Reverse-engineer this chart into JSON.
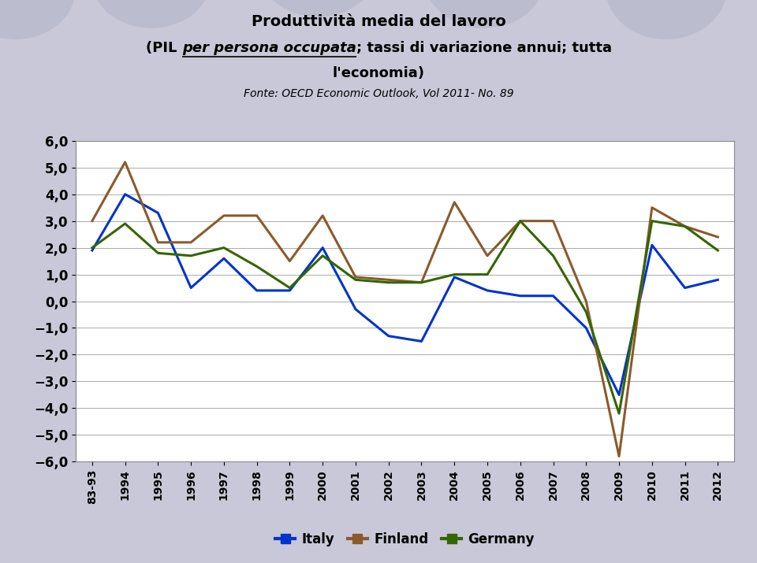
{
  "title_line1": "Produttività media del lavoro",
  "title_line2_pre": "(PIL ",
  "title_line2_italic": "per persona occupata",
  "title_line2_post": "; tassi di variazione annui; tutta",
  "title_line3": "l'economia)",
  "subtitle": "Fonte: OECD Economic Outlook, Vol 2011- No. 89",
  "x_labels": [
    "83-93",
    "1994",
    "1995",
    "1996",
    "1997",
    "1998",
    "1999",
    "2000",
    "2001",
    "2002",
    "2003",
    "2004",
    "2005",
    "2006",
    "2007",
    "2008",
    "2009",
    "2010",
    "2011",
    "2012"
  ],
  "italy": [
    1.9,
    4.0,
    3.3,
    0.5,
    1.6,
    0.4,
    0.4,
    2.0,
    -0.3,
    -1.3,
    -1.5,
    0.9,
    0.4,
    0.2,
    0.2,
    -1.0,
    -3.5,
    2.1,
    0.5,
    0.8
  ],
  "finland": [
    3.0,
    5.2,
    2.2,
    2.2,
    3.2,
    3.2,
    1.5,
    3.2,
    0.9,
    0.8,
    0.7,
    3.7,
    1.7,
    3.0,
    3.0,
    0.0,
    -5.8,
    3.5,
    2.8,
    2.4
  ],
  "germany": [
    2.0,
    2.9,
    1.8,
    1.7,
    2.0,
    1.3,
    0.5,
    1.7,
    0.8,
    0.7,
    0.7,
    1.0,
    1.0,
    3.0,
    1.7,
    -0.4,
    -4.2,
    3.0,
    2.8,
    1.9
  ],
  "italy_color": "#0033CC",
  "finland_color": "#8B5A2B",
  "germany_color": "#336600",
  "ylim": [
    -6.0,
    6.0
  ],
  "yticks": [
    -6.0,
    -5.0,
    -4.0,
    -3.0,
    -2.0,
    -1.0,
    0.0,
    1.0,
    2.0,
    3.0,
    4.0,
    5.0,
    6.0
  ],
  "background_color": "#c8c8d8",
  "plot_bg_color": "#ffffff",
  "grid_color": "#aaaaaa",
  "linewidth": 2.2,
  "circle_color": "#b8b8cc",
  "legend_labels": [
    "Italy",
    "Finland",
    "Germany"
  ]
}
